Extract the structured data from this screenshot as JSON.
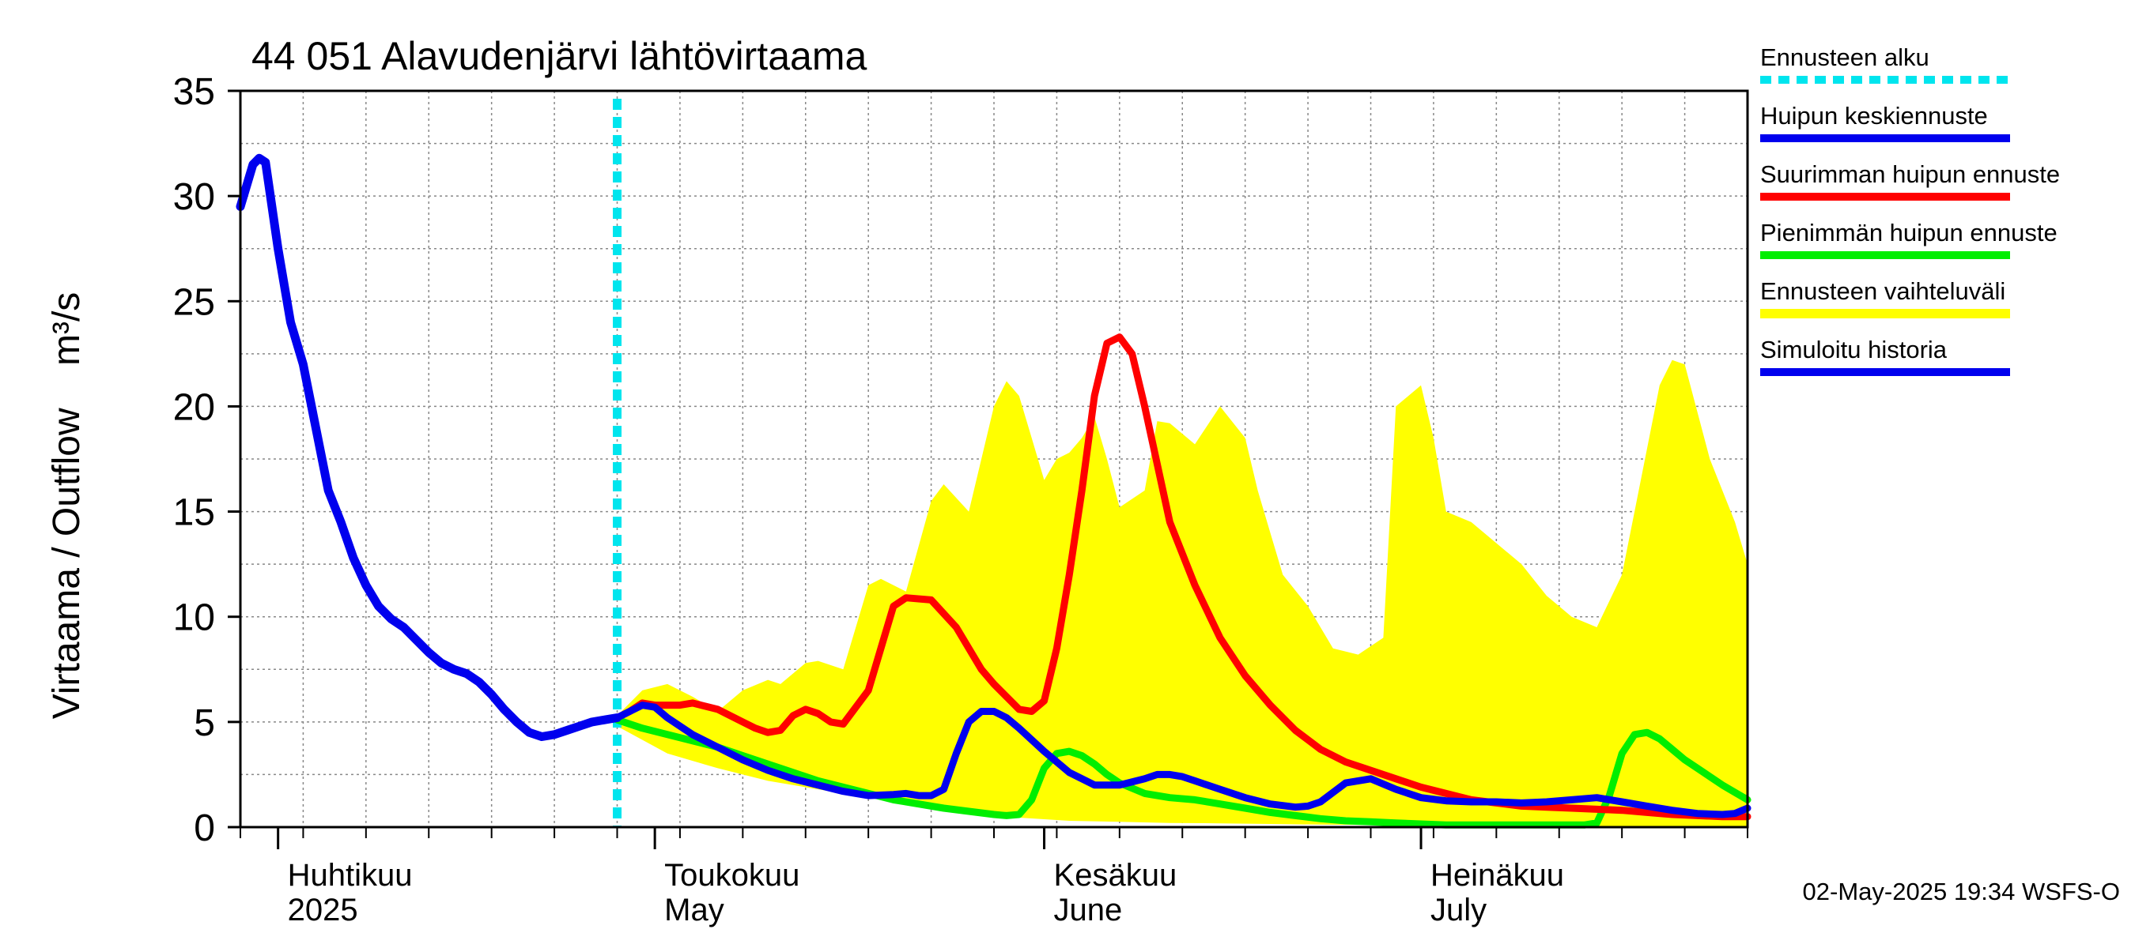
{
  "chart_data": {
    "type": "area",
    "title": "44 051 Alavudenjärvi lähtövirtaama",
    "ylabel": "Virtaama / Outflow",
    "yunit": "m³/s",
    "ylim": [
      0,
      35
    ],
    "yticks": [
      0,
      5,
      10,
      15,
      20,
      25,
      30,
      35
    ],
    "xlim_days": [
      0,
      120
    ],
    "x_unit": "days since 2025-03-29",
    "months": [
      {
        "day": 3,
        "fi": "Huhtikuu",
        "en": "2025"
      },
      {
        "day": 33,
        "fi": "Toukokuu",
        "en": "May"
      },
      {
        "day": 64,
        "fi": "Kesäkuu",
        "en": "June"
      },
      {
        "day": 94,
        "fi": "Heinäkuu",
        "en": "July"
      }
    ],
    "forecast_start_day": 30,
    "legend": [
      {
        "label": "Ennusteen alku",
        "color": "#00e5ee",
        "style": "dotted"
      },
      {
        "label": "Huipun keskiennuste",
        "color": "#0000ee",
        "style": "solid"
      },
      {
        "label": "Suurimman huipun ennuste",
        "color": "#ff0000",
        "style": "solid"
      },
      {
        "label": "Pienimmän huipun ennuste",
        "color": "#00ee00",
        "style": "solid"
      },
      {
        "label": "Ennusteen vaihteluväli",
        "color": "#ffff00",
        "style": "band"
      },
      {
        "label": "Simuloitu historia",
        "color": "#0000ee",
        "style": "solid"
      }
    ],
    "footer": "02-May-2025 19:34 WSFS-O",
    "series": [
      {
        "name": "Simuloitu historia",
        "color": "#0000ee",
        "x": [
          0,
          1,
          1.5,
          2,
          3,
          4,
          5,
          6,
          7,
          8,
          9,
          10,
          11,
          12,
          13,
          14,
          15,
          16,
          17,
          18,
          19,
          20,
          21,
          22,
          23,
          24,
          25,
          26,
          27,
          28,
          29,
          30
        ],
        "y": [
          29.5,
          31.5,
          31.8,
          31.6,
          27.5,
          24,
          22,
          19,
          16,
          14.5,
          12.8,
          11.5,
          10.5,
          9.9,
          9.5,
          8.9,
          8.3,
          7.8,
          7.5,
          7.3,
          6.9,
          6.3,
          5.6,
          5,
          4.5,
          4.3,
          4.4,
          4.6,
          4.8,
          5.0,
          5.1,
          5.2
        ]
      },
      {
        "name": "Ennusteen vaihteluväli (yläraja)",
        "color": "#ffff00",
        "x": [
          30,
          32,
          34,
          36,
          38,
          40,
          42,
          43,
          45,
          46,
          48,
          50,
          51,
          53,
          55,
          56,
          58,
          60,
          61,
          62,
          63,
          64,
          65,
          66,
          67,
          68,
          69,
          70,
          72,
          73,
          74,
          76,
          78,
          80,
          81,
          82,
          83,
          85,
          87,
          89,
          91,
          92,
          94,
          95,
          96,
          98,
          100,
          101,
          102,
          104,
          106,
          108,
          110,
          111,
          113,
          114,
          115,
          117,
          119,
          120
        ],
        "y": [
          5.3,
          6.5,
          6.8,
          6.2,
          5.5,
          6.5,
          7,
          6.8,
          7.8,
          7.9,
          7.5,
          11.5,
          11.8,
          11.2,
          15.5,
          16.3,
          15,
          20,
          21.2,
          20.5,
          18.5,
          16.5,
          17.5,
          17.8,
          18.5,
          19.5,
          17.5,
          15.2,
          16,
          19.3,
          19.2,
          18.2,
          20,
          18.5,
          16,
          14,
          12,
          10.5,
          8.5,
          8.2,
          9,
          20,
          21,
          18.5,
          15,
          14.5,
          13.5,
          13,
          12.5,
          11,
          10,
          9.5,
          12,
          15,
          21,
          22.2,
          22,
          17.5,
          14.5,
          12.5
        ]
      },
      {
        "name": "Ennusteen vaihteluväli (alaraja)",
        "color": "#ffff00",
        "x": [
          30,
          34,
          38,
          42,
          46,
          50,
          54,
          58,
          62,
          66,
          70,
          74,
          78,
          82,
          86,
          90,
          94,
          98,
          102,
          106,
          110,
          114,
          117,
          120
        ],
        "y": [
          4.8,
          3.5,
          2.8,
          2.2,
          1.8,
          1.4,
          1.0,
          0.7,
          0.45,
          0.3,
          0.25,
          0.2,
          0.18,
          0.15,
          0.12,
          0.1,
          0.1,
          0.08,
          0.07,
          0.06,
          0.05,
          0.05,
          0.05,
          0.05
        ]
      },
      {
        "name": "Suurimman huipun ennuste",
        "color": "#ff0000",
        "x": [
          30,
          31,
          32,
          33,
          35,
          36,
          38,
          40,
          41,
          42,
          43,
          44,
          45,
          46,
          47,
          48,
          50,
          51,
          52,
          53,
          55,
          57,
          59,
          60,
          61,
          62,
          63,
          64,
          65,
          66,
          67,
          68,
          69,
          70,
          71,
          72,
          74,
          76,
          78,
          80,
          82,
          84,
          86,
          88,
          90,
          92,
          94,
          96,
          98,
          100,
          102,
          104,
          106,
          108,
          110,
          112,
          114,
          116,
          118,
          120
        ],
        "y": [
          5.2,
          5.5,
          5.9,
          5.8,
          5.8,
          5.9,
          5.6,
          5.0,
          4.7,
          4.5,
          4.6,
          5.3,
          5.6,
          5.4,
          5.0,
          4.9,
          6.5,
          8.5,
          10.5,
          10.9,
          10.8,
          9.5,
          7.5,
          6.8,
          6.2,
          5.6,
          5.5,
          6.0,
          8.5,
          12,
          16,
          20.5,
          23.0,
          23.3,
          22.5,
          20,
          14.5,
          11.5,
          9.0,
          7.2,
          5.8,
          4.6,
          3.7,
          3.1,
          2.7,
          2.3,
          1.9,
          1.6,
          1.3,
          1.15,
          1.0,
          0.95,
          0.9,
          0.85,
          0.8,
          0.7,
          0.6,
          0.55,
          0.5,
          0.5
        ]
      },
      {
        "name": "Pienimmän huipun ennuste",
        "color": "#00ee00",
        "x": [
          30,
          32,
          34,
          36,
          38,
          40,
          42,
          44,
          46,
          48,
          50,
          52,
          54,
          56,
          58,
          60,
          61,
          62,
          63,
          64,
          65,
          66,
          67,
          68,
          69,
          70,
          72,
          74,
          76,
          78,
          80,
          82,
          84,
          86,
          88,
          90,
          92,
          94,
          96,
          98,
          100,
          102,
          104,
          106,
          107,
          108,
          109,
          110,
          111,
          112,
          113,
          114,
          115,
          116,
          118,
          120
        ],
        "y": [
          5.1,
          4.7,
          4.4,
          4.1,
          3.8,
          3.4,
          3.0,
          2.6,
          2.2,
          1.9,
          1.6,
          1.3,
          1.1,
          0.9,
          0.75,
          0.6,
          0.55,
          0.6,
          1.3,
          2.8,
          3.5,
          3.6,
          3.4,
          3.0,
          2.5,
          2.1,
          1.6,
          1.4,
          1.3,
          1.1,
          0.9,
          0.7,
          0.55,
          0.4,
          0.3,
          0.25,
          0.2,
          0.15,
          0.1,
          0.1,
          0.1,
          0.1,
          0.1,
          0.1,
          0.1,
          0.2,
          1.5,
          3.5,
          4.4,
          4.5,
          4.2,
          3.7,
          3.2,
          2.8,
          2.0,
          1.3
        ]
      },
      {
        "name": "Huipun keskiennuste",
        "color": "#0000ee",
        "x": [
          30,
          31,
          32,
          33,
          34,
          36,
          38,
          40,
          42,
          44,
          46,
          48,
          50,
          52,
          53,
          54,
          55,
          56,
          57,
          58,
          59,
          60,
          61,
          62,
          64,
          66,
          68,
          70,
          72,
          73,
          74,
          75,
          76,
          78,
          80,
          82,
          84,
          85,
          86,
          88,
          90,
          92,
          94,
          96,
          98,
          100,
          102,
          104,
          106,
          108,
          110,
          112,
          114,
          116,
          118,
          119,
          120
        ],
        "y": [
          5.2,
          5.5,
          5.8,
          5.7,
          5.2,
          4.4,
          3.8,
          3.2,
          2.7,
          2.3,
          2.0,
          1.7,
          1.5,
          1.55,
          1.6,
          1.5,
          1.5,
          1.8,
          3.5,
          5.0,
          5.5,
          5.5,
          5.2,
          4.7,
          3.6,
          2.6,
          2.0,
          2.0,
          2.3,
          2.5,
          2.5,
          2.4,
          2.2,
          1.8,
          1.4,
          1.1,
          0.95,
          1.0,
          1.2,
          2.1,
          2.3,
          1.8,
          1.4,
          1.25,
          1.2,
          1.2,
          1.15,
          1.2,
          1.3,
          1.4,
          1.2,
          1.0,
          0.8,
          0.65,
          0.6,
          0.65,
          0.9
        ]
      }
    ]
  }
}
